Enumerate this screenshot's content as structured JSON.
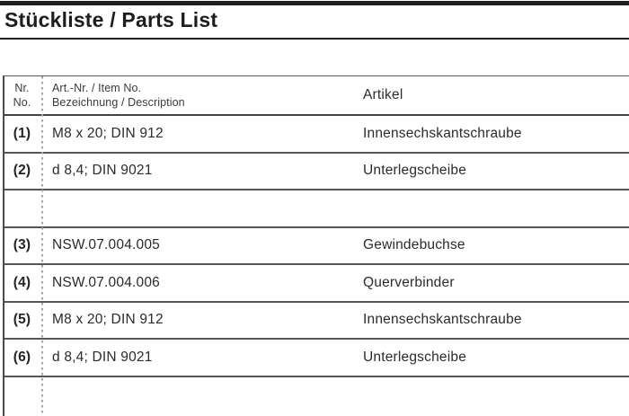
{
  "title": "Stückliste / Parts List",
  "colors": {
    "rule": "#1f1f1f",
    "table_line": "#565656",
    "dotted_divider": "#a5a5a5",
    "text": "#1d1d1b"
  },
  "table": {
    "header": {
      "no_line1": "Nr.",
      "no_line2": "No.",
      "item_line1": "Art.-Nr. / Item No.",
      "item_line2": "Bezeichnung / Description",
      "article": "Artikel"
    },
    "rows": [
      {
        "no": "(1)",
        "item": "M8 x 20; DIN 912",
        "article": "Innensechskantschraube"
      },
      {
        "no": "(2)",
        "item": "d 8,4; DIN 9021",
        "article": "Unterlegscheibe"
      },
      {
        "no": "",
        "item": "",
        "article": ""
      },
      {
        "no": "(3)",
        "item": "NSW.07.004.005",
        "article": "Gewindebuchse"
      },
      {
        "no": "(4)",
        "item": "NSW.07.004.006",
        "article": "Querverbinder"
      },
      {
        "no": "(5)",
        "item": "M8 x 20; DIN 912",
        "article": "Innensechskantschraube"
      },
      {
        "no": "(6)",
        "item": "d 8,4; DIN 9021",
        "article": "Unterlegscheibe"
      },
      {
        "no": "",
        "item": "",
        "article": ""
      }
    ]
  }
}
